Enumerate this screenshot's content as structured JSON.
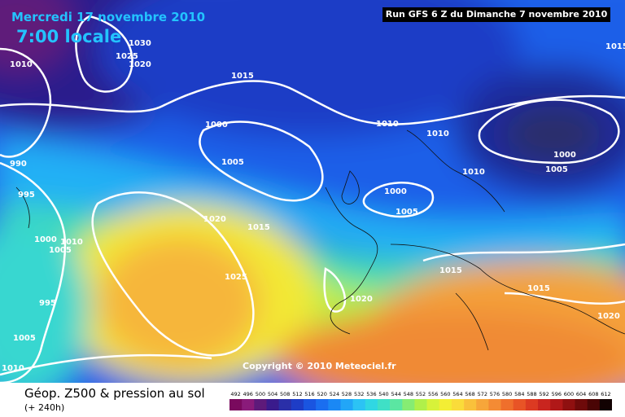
{
  "header": {
    "date": "Mercredi 17 novembre 2010",
    "hour": "7:00 locale",
    "run": "Run GFS 6 Z du Dimanche 7 novembre 2010"
  },
  "copyright": "Copyright © 2010 Meteociel.fr",
  "footer": {
    "title": "Géop. Z500 & pression au sol",
    "subtitle": "(+ 240h)"
  },
  "scale": {
    "labels": [
      "492",
      "496",
      "500",
      "504",
      "508",
      "512",
      "516",
      "520",
      "524",
      "528",
      "532",
      "536",
      "540",
      "544",
      "548",
      "552",
      "556",
      "560",
      "564",
      "568",
      "572",
      "576",
      "580",
      "584",
      "588",
      "592",
      "596",
      "600",
      "604",
      "608",
      "612"
    ],
    "colors": [
      "#7a0a5e",
      "#8a1b7a",
      "#5e1a7a",
      "#3a1b8c",
      "#2a2fa8",
      "#1e3dc6",
      "#1a55e0",
      "#1a6ef0",
      "#1a88f5",
      "#22a6f7",
      "#2cc3f4",
      "#30d7e3",
      "#3fe0c6",
      "#5be6a2",
      "#86ec73",
      "#b0f04a",
      "#d7f23a",
      "#f3ee34",
      "#fadc3a",
      "#f9c13b",
      "#f7a63a",
      "#f48b34",
      "#ef6f2c",
      "#e85426",
      "#dc3a22",
      "#c9251f",
      "#b01818",
      "#8f1010",
      "#6e0a0a",
      "#4a0505",
      "#120202"
    ]
  },
  "isobars": [
    "1030",
    "1025",
    "1020",
    "1010",
    "1015",
    "1000",
    "1005",
    "990",
    "995",
    "1000",
    "1005",
    "1010",
    "1010",
    "1000",
    "1005",
    "1010",
    "1020",
    "1015",
    "1025",
    "1010",
    "1015",
    "1020",
    "995",
    "1005",
    "1010",
    "1020",
    "1015",
    "1000",
    "1005",
    "1015"
  ]
}
